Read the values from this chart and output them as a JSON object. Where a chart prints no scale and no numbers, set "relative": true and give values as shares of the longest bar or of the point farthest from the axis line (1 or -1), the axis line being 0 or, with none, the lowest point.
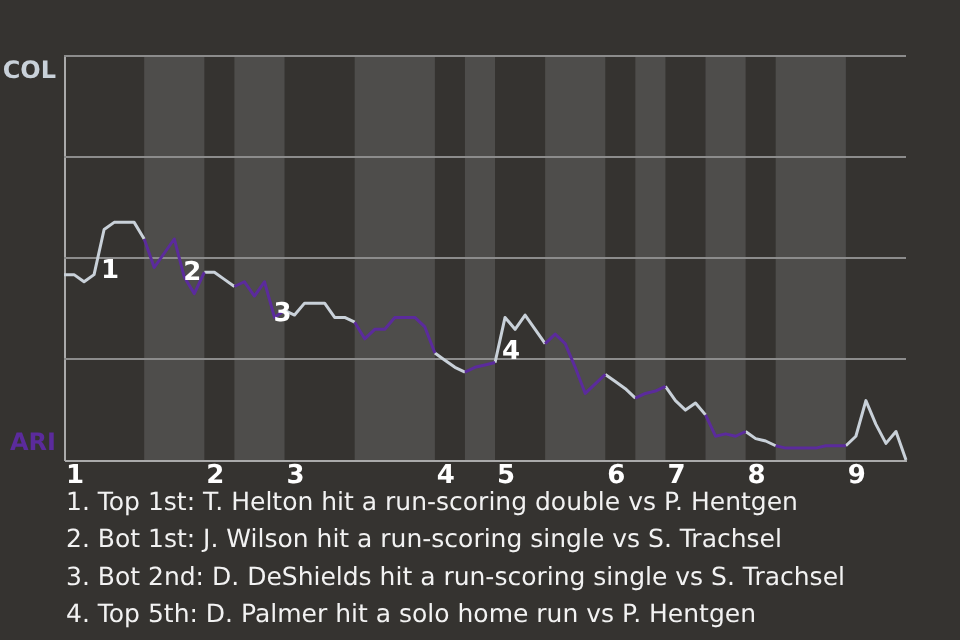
{
  "chart_data": {
    "type": "line",
    "relative": true,
    "categories": [
      null,
      "1",
      null,
      null,
      null,
      null,
      null,
      null,
      null,
      null,
      null,
      null,
      null,
      null,
      null,
      "2",
      null,
      null,
      null,
      null,
      null,
      null,
      null,
      "3",
      null,
      null,
      null,
      null,
      null,
      null,
      null,
      null,
      null,
      null,
      null,
      null,
      null,
      null,
      "4",
      null,
      null,
      null,
      null,
      null,
      "5",
      null,
      null,
      null,
      null,
      null,
      null,
      null,
      null,
      null,
      null,
      "6",
      null,
      null,
      null,
      null,
      null,
      "7",
      null,
      null,
      null,
      null,
      null,
      null,
      null,
      "8",
      null,
      null,
      null,
      null,
      null,
      null,
      null,
      null,
      null,
      "9",
      null,
      null,
      null,
      null,
      null
    ],
    "series": [
      {
        "color": "#c9d1d9",
        "values": [
          0.78,
          0.78,
          0.75,
          0.78,
          0.97,
          1,
          1,
          1,
          0.93,
          null,
          null,
          null,
          null,
          null,
          0.79,
          0.79,
          0.76,
          0.73,
          null,
          null,
          null,
          null,
          0.63,
          0.61,
          0.66,
          0.66,
          0.66,
          0.6,
          0.6,
          0.58,
          null,
          null,
          null,
          null,
          null,
          null,
          null,
          0.45,
          0.42,
          0.39,
          0.37,
          null,
          null,
          0.41,
          0.6,
          0.55,
          0.61,
          0.55,
          0.49,
          null,
          null,
          null,
          null,
          null,
          0.36,
          0.33,
          0.3,
          0.26,
          null,
          null,
          0.31,
          0.25,
          0.21,
          0.24,
          0.19,
          null,
          null,
          null,
          0.12,
          0.09,
          0.08,
          0.06,
          null,
          null,
          null,
          null,
          null,
          null,
          0.06,
          0.1,
          0.25,
          0.15,
          0.07,
          0.12,
          0
        ]
      },
      {
        "color": "#5b2b9c",
        "values": [
          null,
          null,
          null,
          null,
          null,
          null,
          null,
          null,
          0.93,
          0.81,
          0.87,
          0.93,
          0.77,
          0.7,
          0.79,
          null,
          null,
          0.73,
          0.75,
          0.69,
          0.75,
          0.6,
          0.63,
          null,
          null,
          null,
          null,
          null,
          null,
          0.58,
          0.51,
          0.55,
          0.55,
          0.6,
          0.6,
          0.6,
          0.56,
          0.45,
          null,
          null,
          0.37,
          0.39,
          0.4,
          0.41,
          null,
          null,
          null,
          null,
          0.49,
          0.53,
          0.49,
          0.39,
          0.28,
          0.32,
          0.36,
          null,
          null,
          0.26,
          0.28,
          0.29,
          0.31,
          null,
          null,
          null,
          0.19,
          0.1,
          0.11,
          0.1,
          0.12,
          null,
          null,
          0.06,
          0.05,
          0.05,
          0.05,
          0.05,
          0.06,
          0.06,
          0.06,
          null,
          null,
          null,
          null,
          null,
          null
        ]
      }
    ],
    "ref_lines": [
      {
        "axis": "y",
        "value": 0.425,
        "color": "#8c8c8c"
      },
      {
        "axis": "y",
        "value": 0.85,
        "color": "#8c8c8c"
      },
      {
        "axis": "y",
        "value": 1.275,
        "color": "#8c8c8c"
      },
      {
        "axis": "y",
        "value": 1.7,
        "color": "#8c8c8c"
      }
    ],
    "marker": "none",
    "line_style": "solid",
    "annotations": [
      "1",
      "2",
      "3",
      "4",
      "COL",
      "ARI",
      "1. Top 1st: T. Helton hit a run-scoring double vs P. Hentgen",
      "2. Bot 1st: J. Wilson hit a run-scoring single vs S. Trachsel",
      "3. Bot 2nd: D. DeShields hit a run-scoring single vs S. Trachsel",
      "4. Top 5th: D. Palmer hit a solo home run vs P. Hentgen"
    ]
  }
}
